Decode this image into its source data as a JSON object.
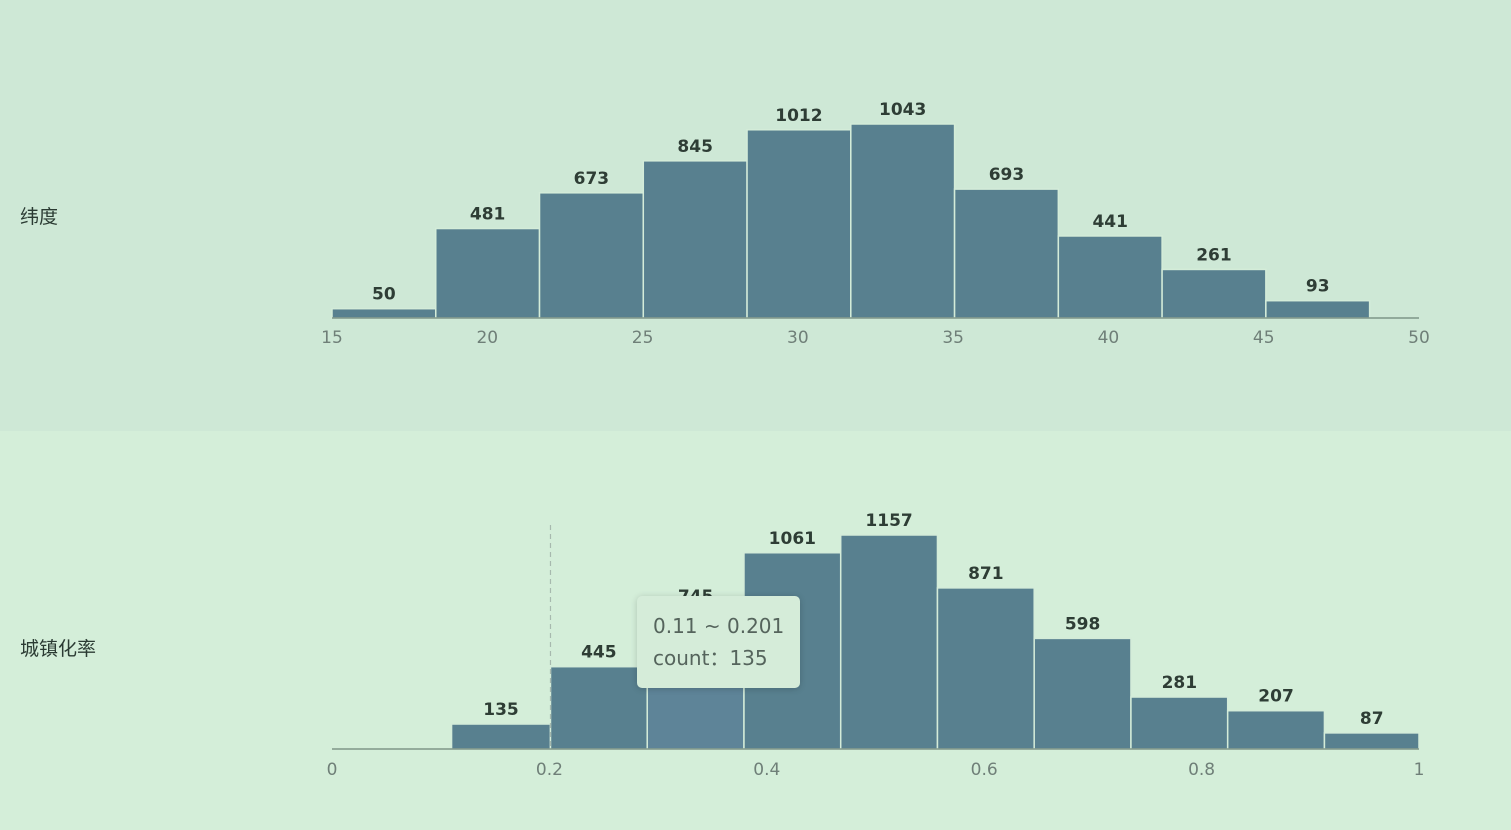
{
  "colors": {
    "panel_backgrounds": [
      "#cee8d6",
      "#d4eed9"
    ],
    "bar": "#58808f",
    "bar_highlight": "#5e8498"
  },
  "chart_data": [
    {
      "type": "bar",
      "row_label": "纬度",
      "xlim": [
        15,
        50
      ],
      "bin_edges": [
        15.0,
        18.341,
        21.682,
        25.023,
        28.364,
        31.705,
        35.046,
        38.387,
        41.728,
        45.069,
        48.41
      ],
      "values": [
        50,
        481,
        673,
        845,
        1012,
        1043,
        693,
        441,
        261,
        93
      ],
      "ymax": 1043,
      "ticks": [
        15,
        20,
        25,
        30,
        35,
        40,
        45,
        50
      ],
      "tick_labels": [
        "15",
        "20",
        "25",
        "30",
        "35",
        "40",
        "45",
        "50"
      ]
    },
    {
      "type": "bar",
      "row_label": "城镇化率",
      "xlim": [
        0,
        1
      ],
      "bin_edges": [
        0.02,
        0.11,
        0.201,
        0.29,
        0.379,
        0.468,
        0.557,
        0.646,
        0.735,
        0.824,
        0.913,
        1.0
      ],
      "values": [
        null,
        135,
        445,
        745,
        1061,
        1157,
        871,
        598,
        281,
        207,
        87
      ],
      "ymax": 1157,
      "ticks": [
        0,
        0.2,
        0.4,
        0.6,
        0.8,
        1
      ],
      "tick_labels": [
        "0",
        "0.2",
        "0.4",
        "0.6",
        "0.8",
        "1"
      ],
      "highlight_bin": 3,
      "pointer_x": 0.201,
      "tooltip": {
        "range": "0.11 ~ 0.201",
        "count_label": "count：",
        "count": "135"
      }
    }
  ]
}
